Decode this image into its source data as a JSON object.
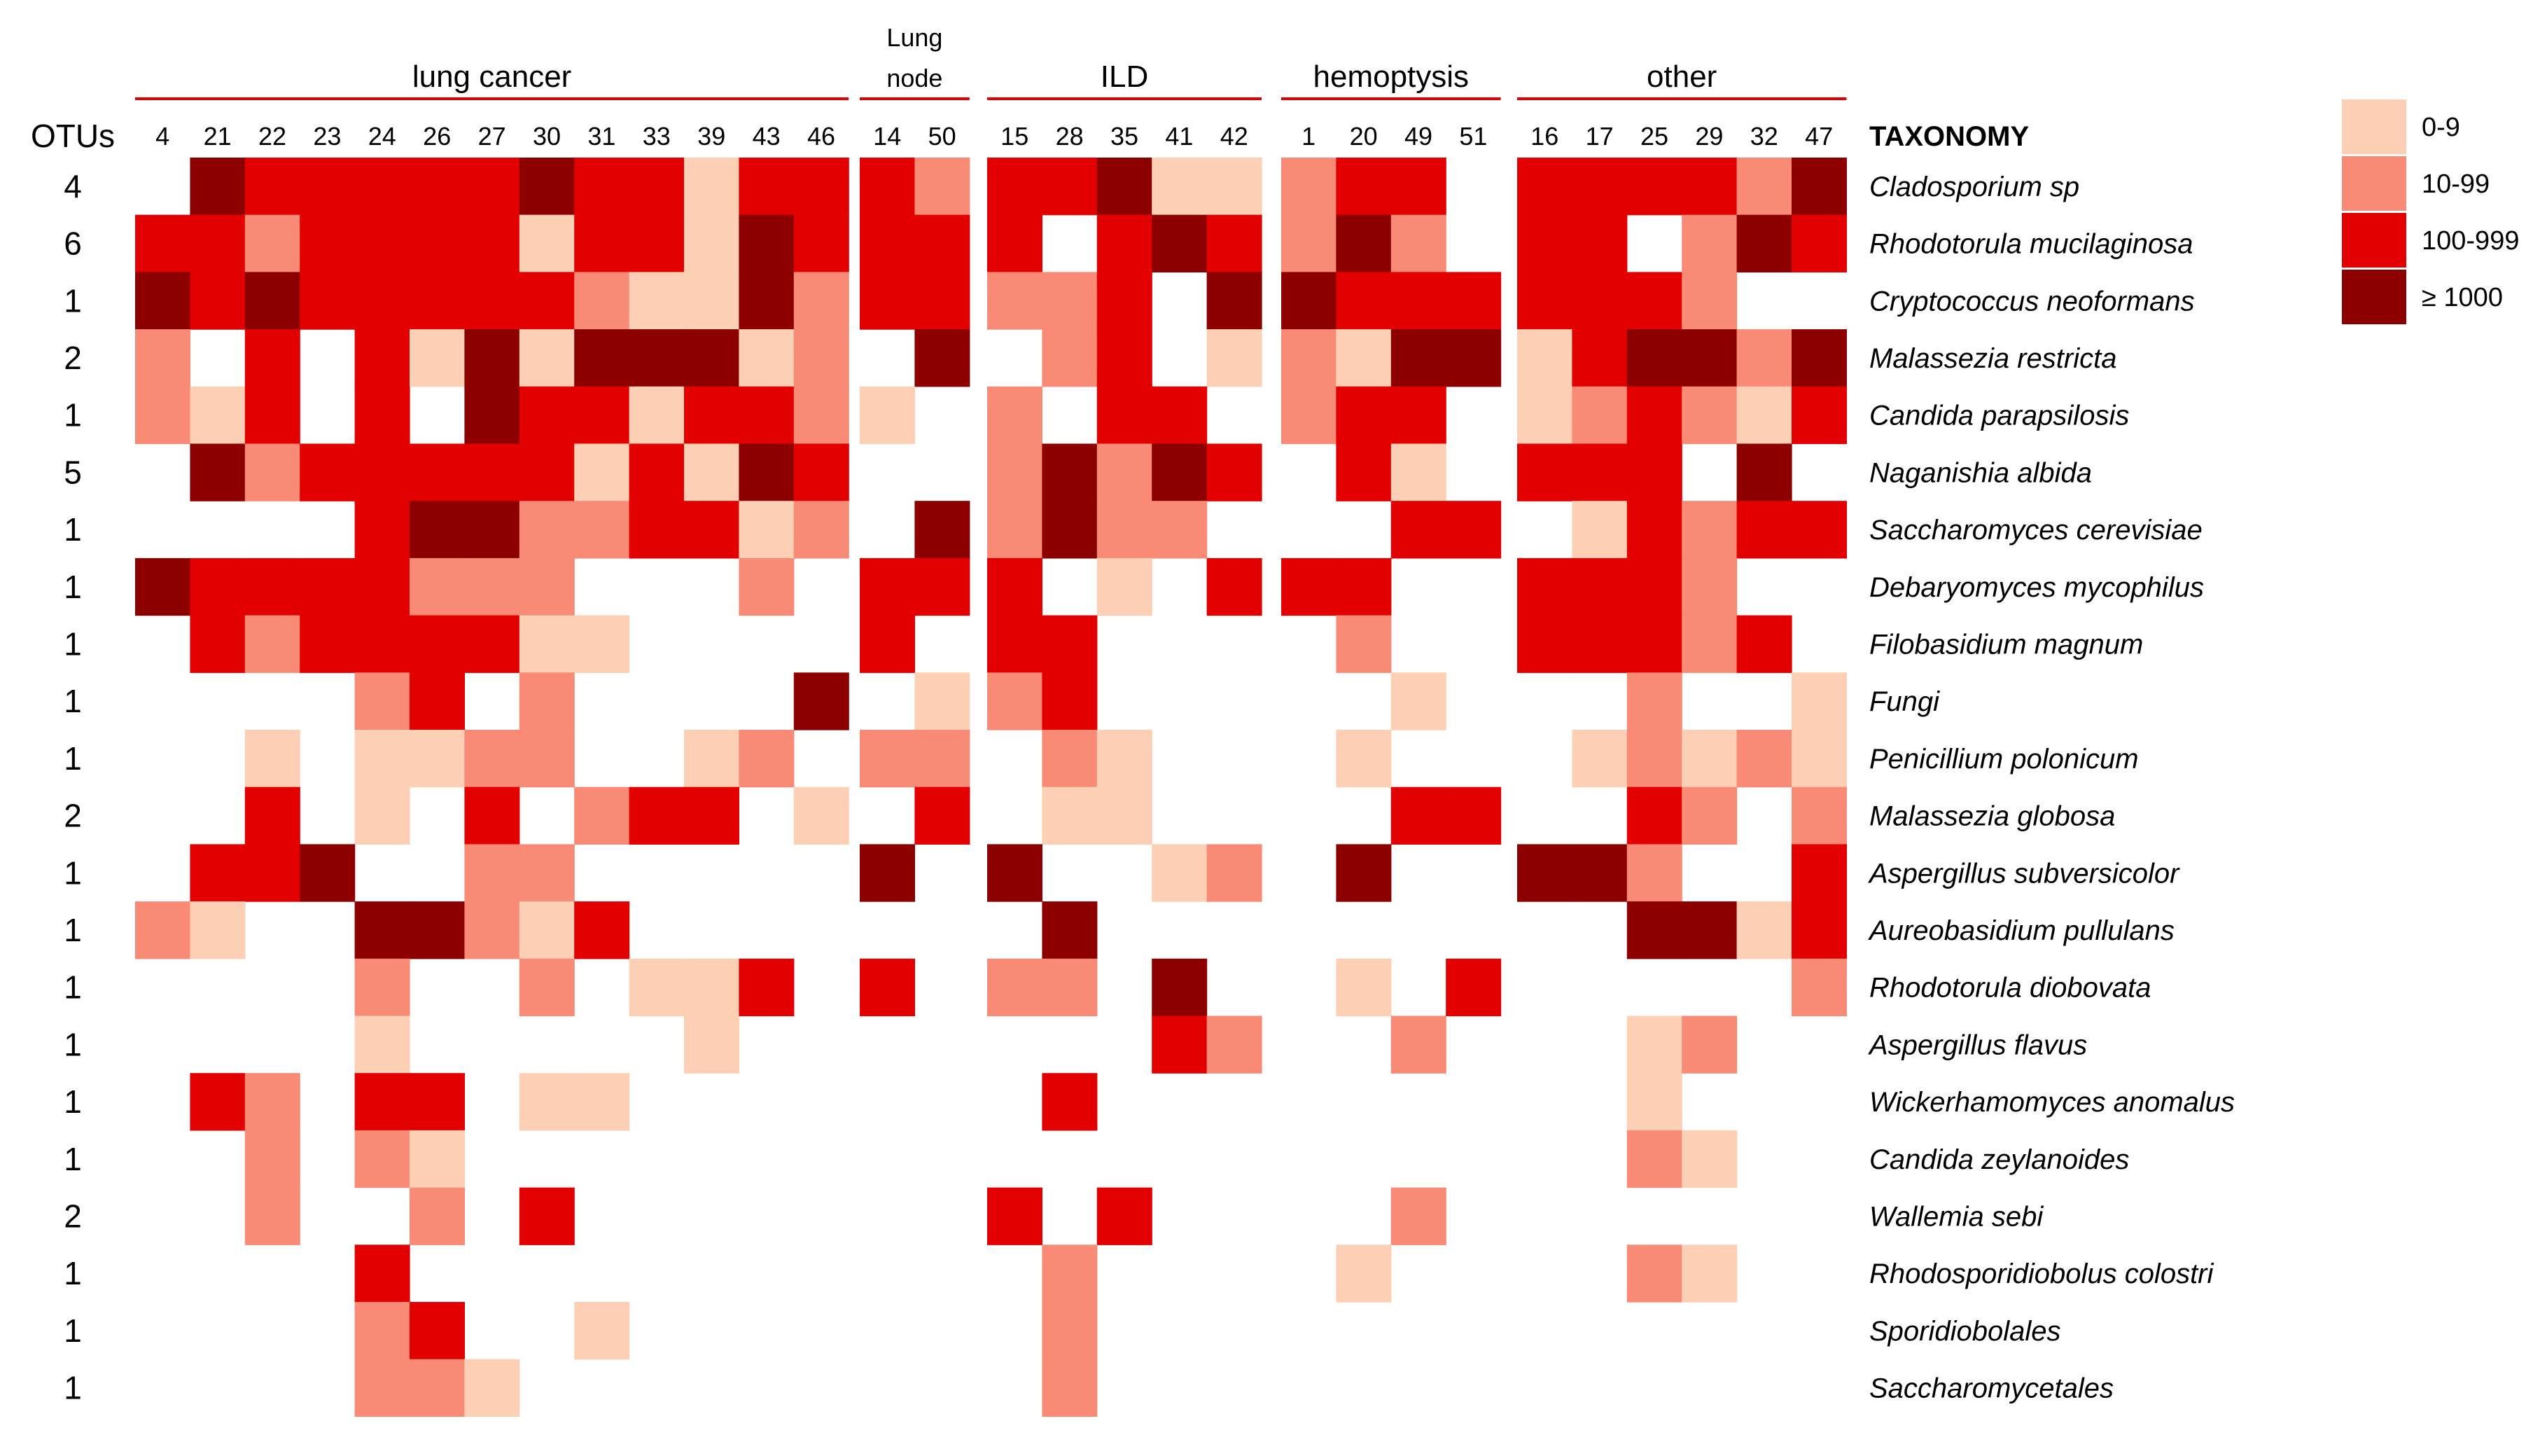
{
  "chart_data": {
    "type": "heatmap",
    "colors": {
      "bin_0": "#ffffff",
      "bin_1": "#fdd0b5",
      "bin_2": "#f98a75",
      "bin_3": "#e20000",
      "bin_4": "#8c0000",
      "group_line": "#e20000"
    },
    "legend": [
      {
        "bin": 1,
        "label": "0-9"
      },
      {
        "bin": 2,
        "label": "10-99"
      },
      {
        "bin": 3,
        "label": "100-999"
      },
      {
        "bin": 4,
        "label": "≥ 1000"
      }
    ],
    "otus_header": "OTUs",
    "taxonomy_header": "TAXONOMY",
    "groups": [
      {
        "label": "lung cancer",
        "samples": [
          "4",
          "21",
          "22",
          "23",
          "24",
          "26",
          "27",
          "30",
          "31",
          "33",
          "39",
          "43",
          "46"
        ]
      },
      {
        "label_lines": [
          "Lung",
          "node"
        ],
        "samples": [
          "14",
          "50"
        ]
      },
      {
        "label": "ILD",
        "samples": [
          "15",
          "28",
          "35",
          "41",
          "42"
        ]
      },
      {
        "label": "hemoptysis",
        "samples": [
          "1",
          "20",
          "49",
          "51"
        ]
      },
      {
        "label": "other",
        "samples": [
          "16",
          "17",
          "25",
          "29",
          "32",
          "47"
        ]
      }
    ],
    "rows": [
      {
        "otus": "4",
        "taxon": "Cladosporium sp"
      },
      {
        "otus": "6",
        "taxon": "Rhodotorula mucilaginosa"
      },
      {
        "otus": "1",
        "taxon": "Cryptococcus neoformans"
      },
      {
        "otus": "2",
        "taxon": "Malassezia restricta"
      },
      {
        "otus": "1",
        "taxon": "Candida parapsilosis"
      },
      {
        "otus": "5",
        "taxon": "Naganishia albida"
      },
      {
        "otus": "1",
        "taxon": "Saccharomyces cerevisiae"
      },
      {
        "otus": "1",
        "taxon": "Debaryomyces mycophilus"
      },
      {
        "otus": "1",
        "taxon": "Filobasidium magnum"
      },
      {
        "otus": "1",
        "taxon": "Fungi"
      },
      {
        "otus": "1",
        "taxon": "Penicillium polonicum"
      },
      {
        "otus": "2",
        "taxon": "Malassezia globosa"
      },
      {
        "otus": "1",
        "taxon": "Aspergillus subversicolor"
      },
      {
        "otus": "1",
        "taxon": "Aureobasidium pullulans"
      },
      {
        "otus": "1",
        "taxon": "Rhodotorula diobovata"
      },
      {
        "otus": "1",
        "taxon": "Aspergillus flavus"
      },
      {
        "otus": "1",
        "taxon": "Wickerhamomyces anomalus"
      },
      {
        "otus": "1",
        "taxon": "Candida zeylanoides"
      },
      {
        "otus": "2",
        "taxon": "Wallemia sebi"
      },
      {
        "otus": "1",
        "taxon": "Rhodosporidiobolus colostri"
      },
      {
        "otus": "1",
        "taxon": "Sporidiobolales"
      },
      {
        "otus": "1",
        "taxon": "Saccharomycetales"
      }
    ],
    "matrix": [
      [
        "0433333433133",
        "32",
        "33411",
        "2330",
        "333324"
      ],
      [
        "3323333133143",
        "33",
        "30343",
        "2420",
        "330243"
      ],
      [
        "4343333321142",
        "33",
        "22304",
        "4333",
        "333200"
      ],
      [
        "2030314144412",
        "04",
        "02301",
        "2144",
        "134424"
      ],
      [
        "2130304331332",
        "10",
        "20330",
        "2330",
        "123213"
      ],
      [
        "0423333313143",
        "00",
        "24243",
        "0310",
        "333040"
      ],
      [
        "0000344223312",
        "04",
        "24220",
        "0033",
        "013233"
      ],
      [
        "4333322200020",
        "33",
        "30103",
        "3300",
        "333200"
      ],
      [
        "0323333110000",
        "30",
        "33000",
        "0200",
        "333230"
      ],
      [
        "0000230200004",
        "01",
        "23000",
        "0010",
        "002001"
      ],
      [
        "0010112200120",
        "22",
        "02100",
        "0100",
        "012121"
      ],
      [
        "0030103023301",
        "03",
        "01100",
        "0033",
        "003202"
      ],
      [
        "0334002200000",
        "40",
        "40012",
        "0400",
        "442003"
      ],
      [
        "2100442130000",
        "00",
        "04000",
        "0000",
        "004413"
      ],
      [
        "0000200201130",
        "30",
        "22040",
        "0103",
        "000002"
      ],
      [
        "0000100000100",
        "00",
        "00032",
        "0020",
        "001200"
      ],
      [
        "0320330110000",
        "00",
        "03000",
        "0000",
        "001000"
      ],
      [
        "0020210000000",
        "00",
        "00000",
        "0000",
        "002100"
      ],
      [
        "0020020300000",
        "00",
        "30300",
        "0020",
        "000000"
      ],
      [
        "0000300000000",
        "00",
        "02000",
        "0100",
        "002100"
      ],
      [
        "0000230010000",
        "00",
        "02000",
        "0000",
        "000000"
      ],
      [
        "0000221000000",
        "00",
        "02000",
        "0000",
        "000000"
      ]
    ]
  }
}
